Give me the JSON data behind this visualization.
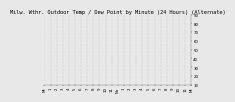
{
  "title": "Milw. Wthr. Outdoor Temp / Dew Point by Minute (24 Hours) (Alternate)",
  "bg_color": "#e8e8e8",
  "plot_bg": "#e8e8e8",
  "grid_color": "#aaaaaa",
  "temp_color": "#cc0000",
  "dew_color": "#0000cc",
  "ylim": [
    10,
    90
  ],
  "yticks": [
    10,
    20,
    30,
    40,
    50,
    60,
    70,
    80,
    90
  ],
  "num_points": 1440,
  "title_fontsize": 3.8,
  "tick_fontsize": 2.8,
  "marker_size": 0.3,
  "vgrid_count": 25,
  "xtick_labels": [
    "Mi",
    "1",
    "2",
    "3",
    "4",
    "5",
    "6",
    "7",
    "8",
    "9",
    "10",
    "11",
    "No",
    "1",
    "2",
    "3",
    "4",
    "5",
    "6",
    "7",
    "8",
    "9",
    "10",
    "11",
    "Mi"
  ]
}
